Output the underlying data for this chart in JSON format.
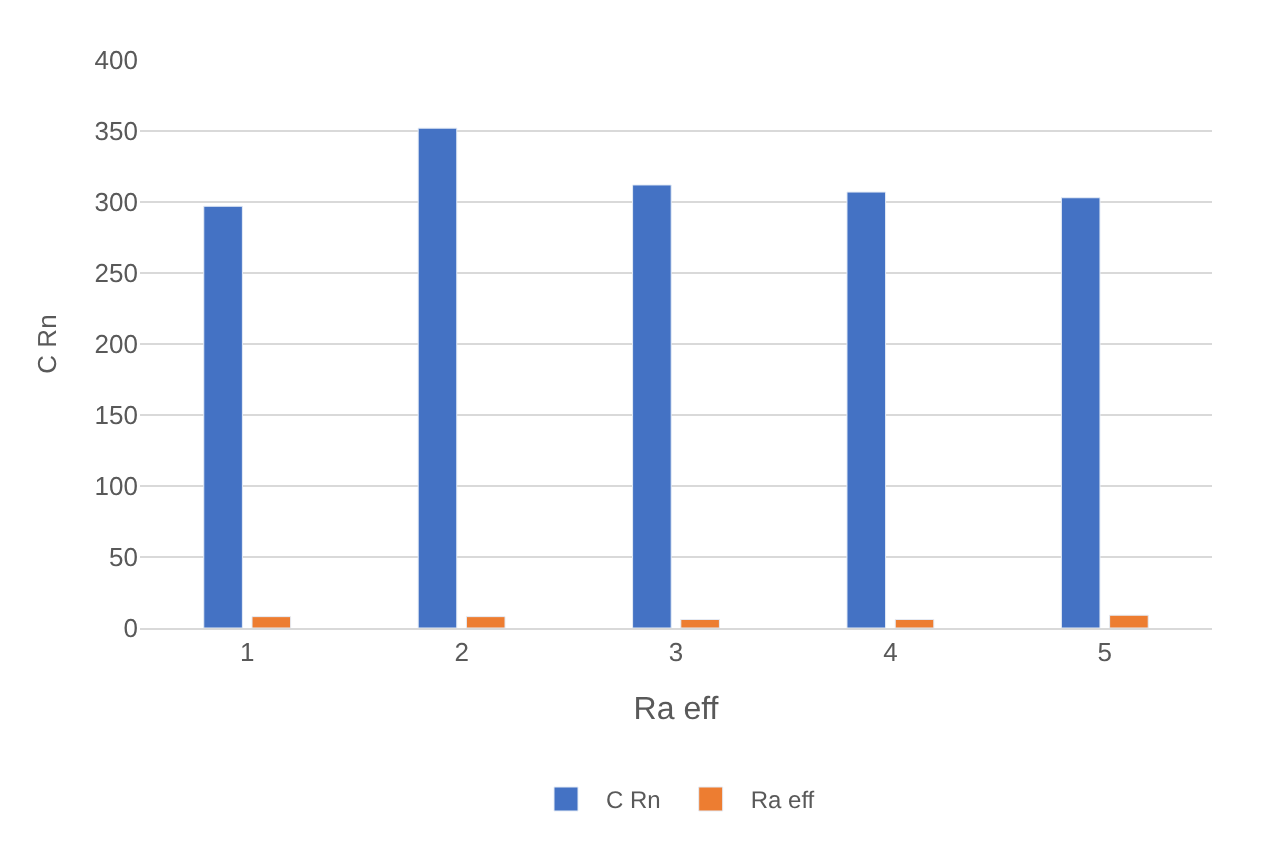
{
  "chart_data": {
    "type": "bar",
    "xlabel": "Ra eff",
    "ylabel": "C Rn",
    "categories": [
      "1",
      "2",
      "3",
      "4",
      "5"
    ],
    "series": [
      {
        "name": "C Rn",
        "color": "#4472c4",
        "values": [
          297,
          352,
          312,
          307,
          303
        ]
      },
      {
        "name": "Ra eff",
        "color": "#ed7d31",
        "values": [
          8,
          8,
          6,
          6,
          9
        ]
      }
    ],
    "ylim": [
      0,
      400
    ],
    "yticks": [
      0,
      50,
      100,
      150,
      200,
      250,
      300,
      350,
      400
    ],
    "grid": "y",
    "legend": "bottom"
  }
}
